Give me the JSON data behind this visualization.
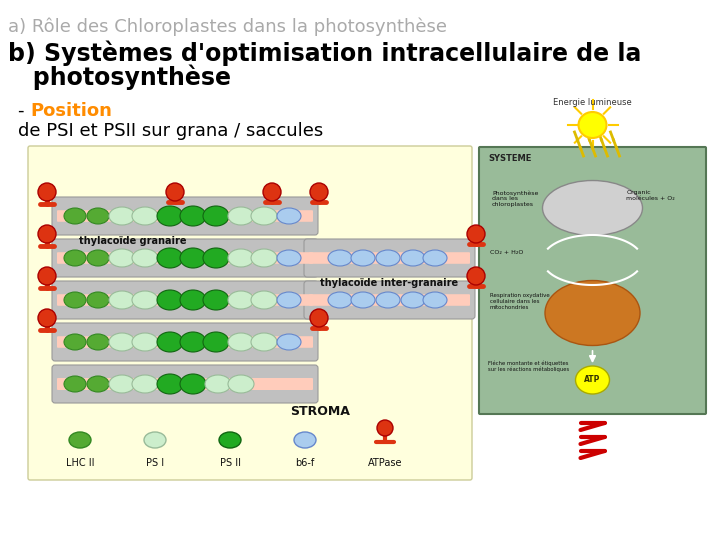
{
  "background_color": "#ffffff",
  "title_a": "a) Rôle des Chloroplastes dans la photosynthèse",
  "title_b_line1": "b) Systèmes d'optimisation intracellulaire de la",
  "title_b_line2": "   photosynthèse",
  "subtitle_dash": "- ",
  "subtitle_position": "Position",
  "subtitle_rest": "de PSI et PSII sur grana / saccules",
  "title_a_color": "#aaaaaa",
  "title_b_color": "#000000",
  "position_color": "#FF8C00",
  "title_a_fontsize": 13,
  "title_b_fontsize": 17,
  "subtitle_fontsize": 13,
  "fig_width": 7.2,
  "fig_height": 5.4,
  "lhc_color": "#55aa33",
  "psi_color": "#cceecc",
  "psii_color": "#22aa22",
  "b6f_color": "#aaccee",
  "atpase_color": "#dd3311",
  "membrane_color": "#c0c0c0",
  "membrane_edge": "#999999",
  "pink_color": "#ffccbb",
  "bg_yellow": "#ffffdd",
  "bg_green": "#99bb99"
}
